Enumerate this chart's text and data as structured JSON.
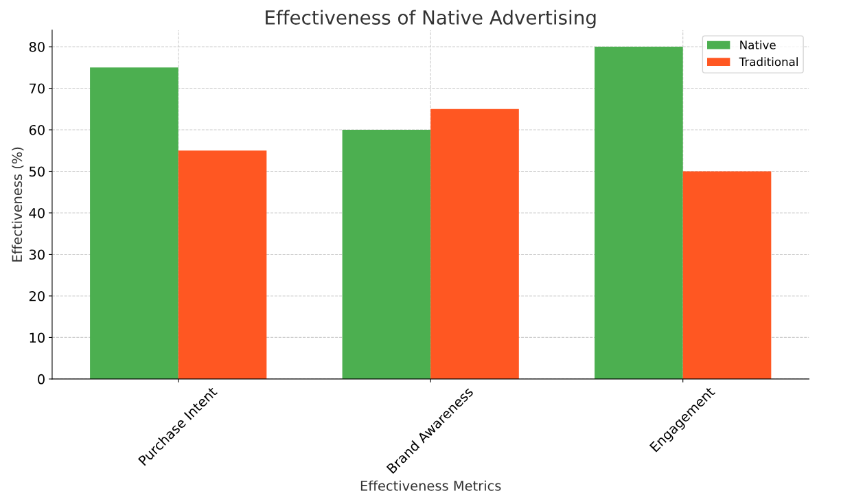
{
  "chart_data": {
    "type": "bar",
    "title": "Effectiveness of Native Advertising",
    "xlabel": "Effectiveness Metrics",
    "ylabel": "Effectiveness (%)",
    "categories": [
      "Purchase Intent",
      "Brand Awareness",
      "Engagement"
    ],
    "series": [
      {
        "name": "Native",
        "color": "#4caf50",
        "values": [
          75,
          60,
          80
        ]
      },
      {
        "name": "Traditional",
        "color": "#ff5722",
        "values": [
          55,
          65,
          50
        ]
      }
    ],
    "ylim": [
      0,
      84
    ],
    "yticks": [
      0,
      10,
      20,
      30,
      40,
      50,
      60,
      70,
      80
    ],
    "grid": true,
    "legend": "top right"
  }
}
